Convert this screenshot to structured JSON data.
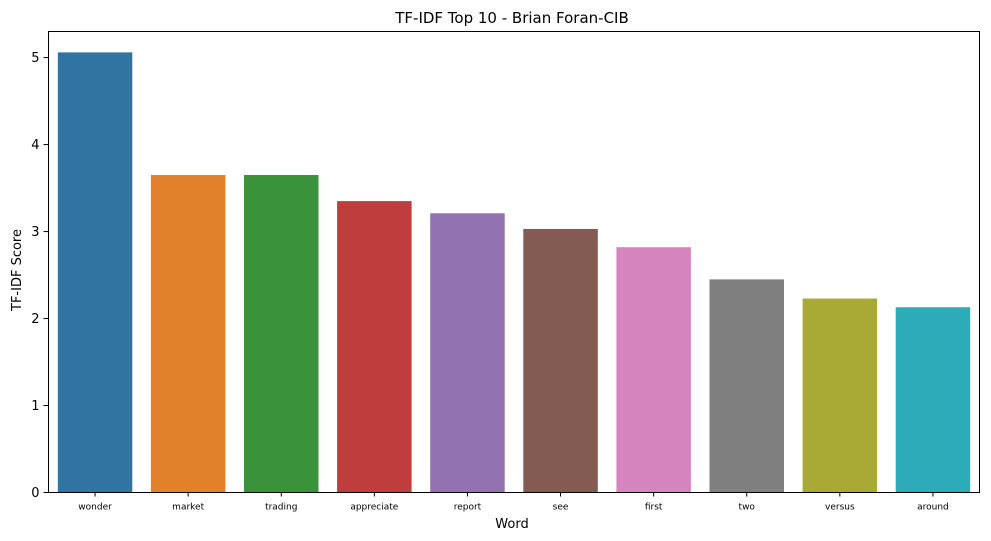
{
  "chart_data": {
    "type": "bar",
    "title": "TF-IDF Top 10 - Brian Foran-CIB",
    "xlabel": "Word",
    "ylabel": "TF-IDF Score",
    "categories": [
      "wonder",
      "market",
      "trading",
      "appreciate",
      "report",
      "see",
      "first",
      "two",
      "versus",
      "around"
    ],
    "values": [
      5.06,
      3.65,
      3.65,
      3.35,
      3.21,
      3.03,
      2.82,
      2.45,
      2.23,
      2.13
    ],
    "colors": [
      "#3274a1",
      "#e1812c",
      "#3a923a",
      "#c03d3e",
      "#9372b2",
      "#845b53",
      "#d684bd",
      "#7f7f7f",
      "#a9aa35",
      "#2eabb8"
    ],
    "ylim": [
      0,
      5.3
    ],
    "yticks": [
      0,
      1,
      2,
      3,
      4,
      5
    ],
    "grid": false,
    "legend": "none"
  }
}
